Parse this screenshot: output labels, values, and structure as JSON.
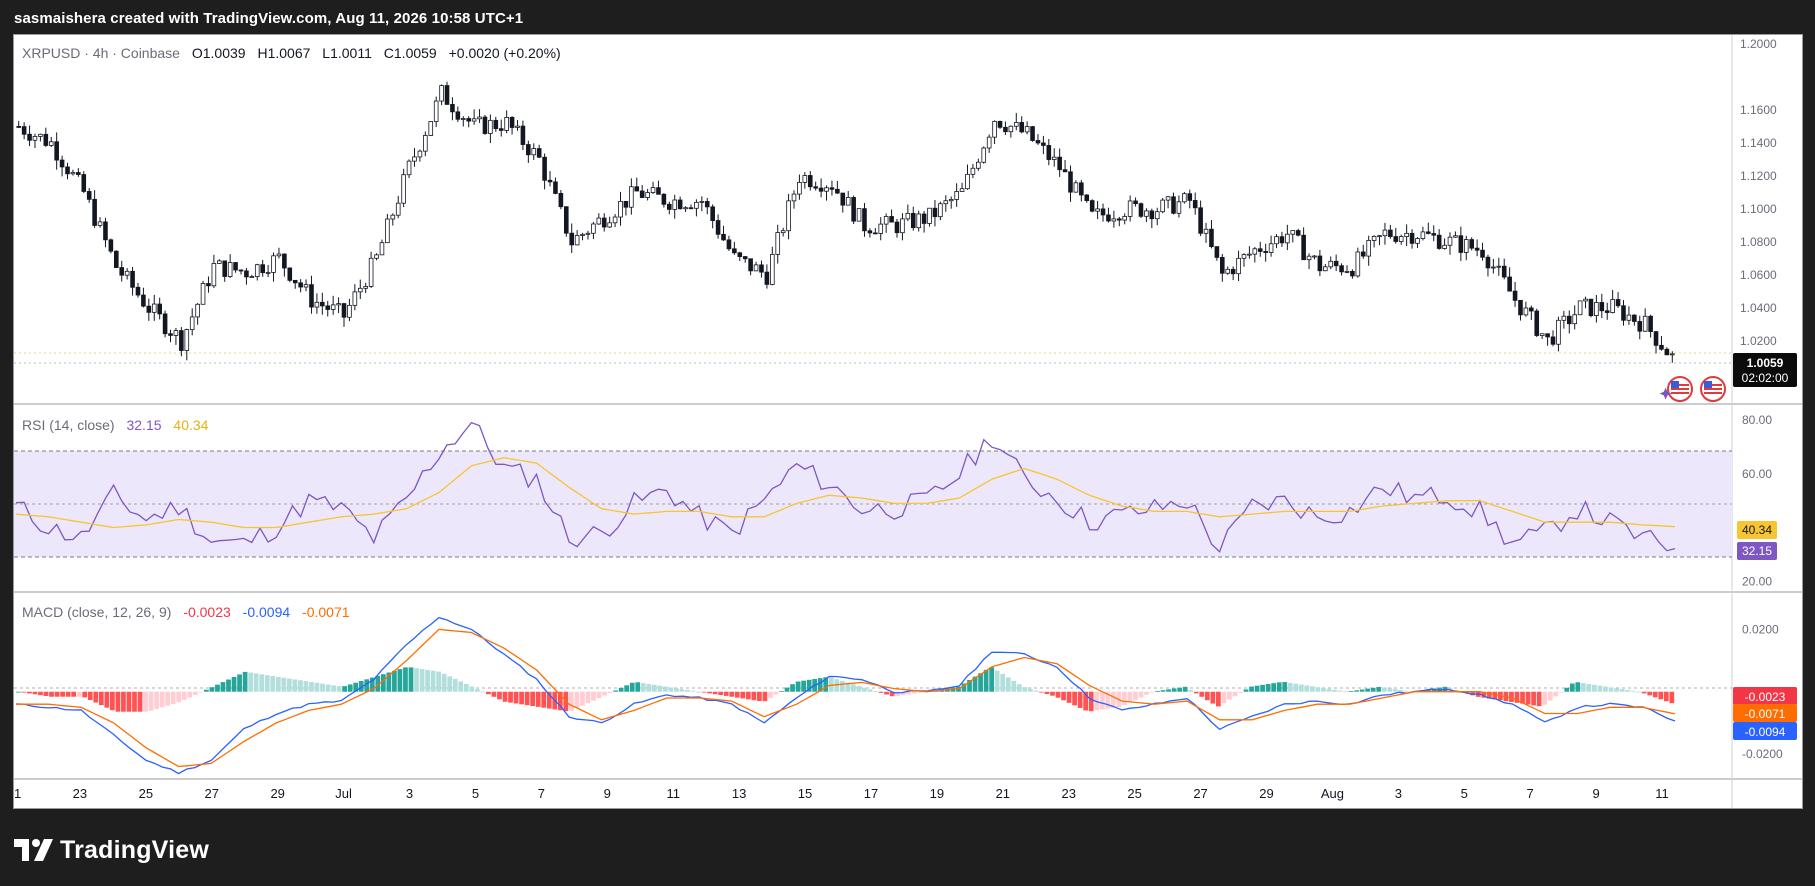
{
  "header": {
    "attribution": "sasmaishera created with TradingView.com, Aug 11, 2026 10:58 UTC+1"
  },
  "brand": {
    "name": "TradingView",
    "icon": "tradingview-logo-icon"
  },
  "price_pane": {
    "symbol": "XRPUSD · 4h · Coinbase",
    "open_label": "O",
    "open": "1.0039",
    "high_label": "H",
    "high": "1.0067",
    "low_label": "L",
    "low": "1.0011",
    "close_label": "C",
    "close": "1.0059",
    "change": "+0.0020 (+0.20%)",
    "last_price_tag": "1.0059",
    "countdown": "02:02:00"
  },
  "rsi_pane": {
    "title": "RSI (14, close)",
    "rsi_value": "32.15",
    "ma_value": "40.34"
  },
  "macd_pane": {
    "title": "MACD (close, 12, 26, 9)",
    "hist_value": "-0.0023",
    "macd_value": "-0.0094",
    "signal_value": "-0.0071"
  },
  "chart_data": [
    {
      "type": "candlestick",
      "title": "XRPUSD · 4h · Coinbase",
      "yticks": [
        "1.2000",
        "1.1600",
        "1.1400",
        "1.1200",
        "1.1000",
        "1.0800",
        "1.0600",
        "1.0400",
        "1.0200"
      ],
      "xticks": [
        "1",
        "23",
        "25",
        "27",
        "29",
        "Jul",
        "3",
        "5",
        "7",
        "9",
        "11",
        "13",
        "15",
        "17",
        "19",
        "21",
        "23",
        "25",
        "27",
        "29",
        "Aug",
        "3",
        "5",
        "7",
        "9",
        "11"
      ],
      "ylim": [
        0.995,
        1.2
      ],
      "close_path": [
        {
          "x": "Jun 21",
          "y": 1.15
        },
        {
          "x": "Jun 22",
          "y": 1.14
        },
        {
          "x": "Jun 23",
          "y": 1.11
        },
        {
          "x": "Jun 24",
          "y": 1.065
        },
        {
          "x": "Jun 25",
          "y": 1.04
        },
        {
          "x": "Jun 26",
          "y": 1.02
        },
        {
          "x": "Jun 27",
          "y": 1.065
        },
        {
          "x": "Jun 28",
          "y": 1.062
        },
        {
          "x": "Jun 29",
          "y": 1.07
        },
        {
          "x": "Jun 30",
          "y": 1.045
        },
        {
          "x": "Jul 1",
          "y": 1.035
        },
        {
          "x": "Jul 2",
          "y": 1.07
        },
        {
          "x": "Jul 3",
          "y": 1.125
        },
        {
          "x": "Jul 4",
          "y": 1.17
        },
        {
          "x": "Jul 5",
          "y": 1.15
        },
        {
          "x": "Jul 6",
          "y": 1.152
        },
        {
          "x": "Jul 7",
          "y": 1.13
        },
        {
          "x": "Jul 8",
          "y": 1.08
        },
        {
          "x": "Jul 9",
          "y": 1.095
        },
        {
          "x": "Jul 10",
          "y": 1.11
        },
        {
          "x": "Jul 11",
          "y": 1.105
        },
        {
          "x": "Jul 12",
          "y": 1.105
        },
        {
          "x": "Jul 13",
          "y": 1.07
        },
        {
          "x": "Jul 14",
          "y": 1.06
        },
        {
          "x": "Jul 15",
          "y": 1.12
        },
        {
          "x": "Jul 16",
          "y": 1.115
        },
        {
          "x": "Jul 17",
          "y": 1.09
        },
        {
          "x": "Jul 18",
          "y": 1.09
        },
        {
          "x": "Jul 19",
          "y": 1.095
        },
        {
          "x": "Jul 20",
          "y": 1.11
        },
        {
          "x": "Jul 21",
          "y": 1.155
        },
        {
          "x": "Jul 22",
          "y": 1.145
        },
        {
          "x": "Jul 23",
          "y": 1.125
        },
        {
          "x": "Jul 24",
          "y": 1.095
        },
        {
          "x": "Jul 25",
          "y": 1.1
        },
        {
          "x": "Jul 26",
          "y": 1.1
        },
        {
          "x": "Jul 27",
          "y": 1.105
        },
        {
          "x": "Jul 28",
          "y": 1.06
        },
        {
          "x": "Jul 29",
          "y": 1.075
        },
        {
          "x": "Jul 30",
          "y": 1.085
        },
        {
          "x": "Jul 31",
          "y": 1.065
        },
        {
          "x": "Aug 1",
          "y": 1.065
        },
        {
          "x": "Aug 2",
          "y": 1.085
        },
        {
          "x": "Aug 3",
          "y": 1.085
        },
        {
          "x": "Aug 4",
          "y": 1.08
        },
        {
          "x": "Aug 5",
          "y": 1.075
        },
        {
          "x": "Aug 6",
          "y": 1.045
        },
        {
          "x": "Aug 7",
          "y": 1.02
        },
        {
          "x": "Aug 8",
          "y": 1.04
        },
        {
          "x": "Aug 9",
          "y": 1.04
        },
        {
          "x": "Aug 10",
          "y": 1.03
        },
        {
          "x": "Aug 11",
          "y": 1.0059
        }
      ]
    },
    {
      "type": "line",
      "title": "RSI (14, close)",
      "yticks": [
        "80.00",
        "60.00",
        "20.00"
      ],
      "ylim": [
        16,
        86
      ],
      "bands": [
        30,
        50,
        70
      ],
      "series": [
        {
          "values": [
            48,
            40,
            36,
            52,
            43,
            48,
            35,
            34,
            40,
            50,
            47,
            36,
            50,
            68,
            79,
            62,
            58,
            36,
            38,
            49,
            54,
            44,
            38,
            50,
            63,
            56,
            47,
            47,
            50,
            60,
            74,
            58,
            51,
            42,
            45,
            47,
            50,
            32,
            48,
            50,
            44,
            46,
            55,
            51,
            52,
            46,
            34,
            38,
            47,
            42,
            36,
            32.15
          ],
          "color": "#7e57c2"
        },
        {
          "values": [
            45,
            44,
            42,
            40,
            41,
            43,
            42,
            40,
            40,
            42,
            44,
            45,
            47,
            53,
            63,
            66,
            64,
            55,
            47,
            45,
            46,
            46,
            44,
            44,
            49,
            52,
            51,
            49,
            49,
            51,
            58,
            62,
            58,
            52,
            48,
            46,
            46,
            44,
            45,
            46,
            46,
            46,
            48,
            49,
            50,
            50,
            46,
            42,
            42,
            42,
            41,
            40.34
          ],
          "color": "#f7c531"
        }
      ]
    },
    {
      "type": "line",
      "title": "MACD (close, 12, 26, 9)",
      "yticks": [
        "0.0200",
        "0.0000",
        "-0.0200"
      ],
      "ylim": [
        -0.028,
        0.032
      ],
      "series": [
        {
          "values": [
            -0.004,
            -0.005,
            -0.006,
            -0.014,
            -0.022,
            -0.026,
            -0.022,
            -0.012,
            -0.007,
            -0.004,
            -0.003,
            0.004,
            0.015,
            0.024,
            0.02,
            0.012,
            0.004,
            -0.008,
            -0.01,
            -0.004,
            -0.001,
            -0.002,
            -0.004,
            -0.01,
            -0.002,
            0.005,
            0.004,
            0.0,
            0.0,
            0.002,
            0.013,
            0.012,
            0.008,
            -0.002,
            -0.006,
            -0.004,
            -0.002,
            -0.012,
            -0.008,
            -0.004,
            -0.003,
            -0.004,
            -0.001,
            0.0,
            0.001,
            -0.001,
            -0.004,
            -0.01,
            -0.005,
            -0.004,
            -0.005,
            -0.0094
          ],
          "color": "#2962ff"
        },
        {
          "values": [
            -0.004,
            -0.004,
            -0.005,
            -0.01,
            -0.018,
            -0.024,
            -0.023,
            -0.016,
            -0.01,
            -0.006,
            -0.004,
            0.001,
            0.01,
            0.02,
            0.019,
            0.014,
            0.007,
            -0.004,
            -0.009,
            -0.006,
            -0.002,
            -0.002,
            -0.003,
            -0.008,
            -0.004,
            0.002,
            0.003,
            0.001,
            0.0,
            0.001,
            0.008,
            0.011,
            0.009,
            0.002,
            -0.003,
            -0.004,
            -0.003,
            -0.009,
            -0.009,
            -0.006,
            -0.004,
            -0.004,
            -0.002,
            0.0,
            0.0,
            0.0,
            -0.002,
            -0.007,
            -0.007,
            -0.005,
            -0.005,
            -0.0071
          ],
          "color": "#ff6d00"
        }
      ]
    }
  ]
}
